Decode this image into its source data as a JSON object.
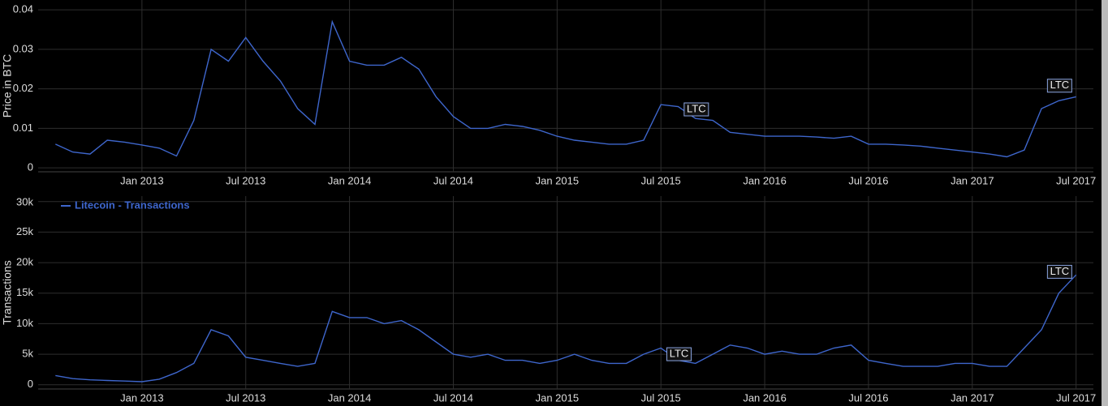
{
  "chart_data": [
    {
      "type": "line",
      "y_label": "Price in BTC",
      "grid": true,
      "xlim": [
        "2012-07",
        "2017-08"
      ],
      "xticks": [
        {
          "value": "2013-01",
          "label": "Jan 2013"
        },
        {
          "value": "2013-07",
          "label": "Jul 2013"
        },
        {
          "value": "2014-01",
          "label": "Jan 2014"
        },
        {
          "value": "2014-07",
          "label": "Jul 2014"
        },
        {
          "value": "2015-01",
          "label": "Jan 2015"
        },
        {
          "value": "2015-07",
          "label": "Jul 2015"
        },
        {
          "value": "2016-01",
          "label": "Jan 2016"
        },
        {
          "value": "2016-07",
          "label": "Jul 2016"
        },
        {
          "value": "2017-01",
          "label": "Jan 2017"
        },
        {
          "value": "2017-07",
          "label": "Jul 2017"
        }
      ],
      "ylim": [
        -0.001,
        0.0425
      ],
      "yticks": [
        0,
        0.01,
        0.02,
        0.03,
        0.04
      ],
      "x": [
        "2012-08",
        "2012-09",
        "2012-10",
        "2012-11",
        "2012-12",
        "2013-01",
        "2013-02",
        "2013-03",
        "2013-04",
        "2013-05",
        "2013-06",
        "2013-07",
        "2013-08",
        "2013-09",
        "2013-10",
        "2013-11",
        "2013-12",
        "2014-01",
        "2014-02",
        "2014-03",
        "2014-04",
        "2014-05",
        "2014-06",
        "2014-07",
        "2014-08",
        "2014-09",
        "2014-10",
        "2014-11",
        "2014-12",
        "2015-01",
        "2015-02",
        "2015-03",
        "2015-04",
        "2015-05",
        "2015-06",
        "2015-07",
        "2015-08",
        "2015-09",
        "2015-10",
        "2015-11",
        "2015-12",
        "2016-01",
        "2016-02",
        "2016-03",
        "2016-04",
        "2016-05",
        "2016-06",
        "2016-07",
        "2016-08",
        "2016-09",
        "2016-10",
        "2016-11",
        "2016-12",
        "2017-01",
        "2017-02",
        "2017-03",
        "2017-04",
        "2017-05",
        "2017-06",
        "2017-07"
      ],
      "series": [
        {
          "color": "#3e66cc",
          "values": [
            0.006,
            0.004,
            0.0035,
            0.007,
            0.0065,
            0.0058,
            0.005,
            0.003,
            0.012,
            0.03,
            0.027,
            0.033,
            0.027,
            0.022,
            0.015,
            0.011,
            0.037,
            0.027,
            0.026,
            0.026,
            0.028,
            0.025,
            0.018,
            0.013,
            0.01,
            0.01,
            0.011,
            0.0105,
            0.0095,
            0.008,
            0.007,
            0.0065,
            0.006,
            0.006,
            0.007,
            0.016,
            0.0155,
            0.0125,
            0.012,
            0.009,
            0.0085,
            0.008,
            0.008,
            0.008,
            0.0078,
            0.0075,
            0.008,
            0.006,
            0.006,
            0.0058,
            0.0055,
            0.005,
            0.0045,
            0.004,
            0.0035,
            0.0028,
            0.0045,
            0.015,
            0.017,
            0.018
          ]
        }
      ],
      "annotations": [
        {
          "text": "LTC",
          "x": "2015-09",
          "y": 0.0148
        },
        {
          "text": "LTC",
          "x": "2017-06",
          "y": 0.0208
        }
      ]
    },
    {
      "type": "line",
      "y_label": "Transactions",
      "grid": true,
      "legend": "top-left",
      "xlim": [
        "2012-07",
        "2017-08"
      ],
      "xticks": [
        {
          "value": "2013-01",
          "label": "Jan 2013"
        },
        {
          "value": "2013-07",
          "label": "Jul 2013"
        },
        {
          "value": "2014-01",
          "label": "Jan 2014"
        },
        {
          "value": "2014-07",
          "label": "Jul 2014"
        },
        {
          "value": "2015-01",
          "label": "Jan 2015"
        },
        {
          "value": "2015-07",
          "label": "Jul 2015"
        },
        {
          "value": "2016-01",
          "label": "Jan 2016"
        },
        {
          "value": "2016-07",
          "label": "Jul 2016"
        },
        {
          "value": "2017-01",
          "label": "Jan 2017"
        },
        {
          "value": "2017-07",
          "label": "Jul 2017"
        }
      ],
      "ylim": [
        -700,
        30900
      ],
      "yticks": [
        0,
        {
          "value": 5000,
          "label": "5k"
        },
        {
          "value": 10000,
          "label": "10k"
        },
        {
          "value": 15000,
          "label": "15k"
        },
        {
          "value": 20000,
          "label": "20k"
        },
        {
          "value": 25000,
          "label": "25k"
        },
        {
          "value": 30000,
          "label": "30k"
        }
      ],
      "x": [
        "2012-08",
        "2012-09",
        "2012-10",
        "2012-11",
        "2012-12",
        "2013-01",
        "2013-02",
        "2013-03",
        "2013-04",
        "2013-05",
        "2013-06",
        "2013-07",
        "2013-08",
        "2013-09",
        "2013-10",
        "2013-11",
        "2013-12",
        "2014-01",
        "2014-02",
        "2014-03",
        "2014-04",
        "2014-05",
        "2014-06",
        "2014-07",
        "2014-08",
        "2014-09",
        "2014-10",
        "2014-11",
        "2014-12",
        "2015-01",
        "2015-02",
        "2015-03",
        "2015-04",
        "2015-05",
        "2015-06",
        "2015-07",
        "2015-08",
        "2015-09",
        "2015-10",
        "2015-11",
        "2015-12",
        "2016-01",
        "2016-02",
        "2016-03",
        "2016-04",
        "2016-05",
        "2016-06",
        "2016-07",
        "2016-08",
        "2016-09",
        "2016-10",
        "2016-11",
        "2016-12",
        "2017-01",
        "2017-02",
        "2017-03",
        "2017-04",
        "2017-05",
        "2017-06",
        "2017-07"
      ],
      "series": [
        {
          "name": "Litecoin - Transactions",
          "color": "#3e66cc",
          "values": [
            1500,
            1000,
            800,
            700,
            600,
            500,
            900,
            2000,
            3500,
            9000,
            8000,
            4500,
            4000,
            3500,
            3000,
            3500,
            12000,
            11000,
            11000,
            10000,
            10500,
            9000,
            7000,
            5000,
            4500,
            5000,
            4000,
            4000,
            3500,
            4000,
            5000,
            4000,
            3500,
            3500,
            5000,
            6000,
            4000,
            3500,
            5000,
            6500,
            6000,
            5000,
            5500,
            5000,
            5000,
            6000,
            6500,
            4000,
            3500,
            3000,
            3000,
            3000,
            3500,
            3500,
            3000,
            3000,
            6000,
            9000,
            15000,
            18000
          ]
        }
      ],
      "annotations": [
        {
          "text": "LTC",
          "x": "2015-08",
          "y": 5000
        },
        {
          "text": "LTC",
          "x": "2017-06",
          "y": 18500
        }
      ]
    }
  ]
}
